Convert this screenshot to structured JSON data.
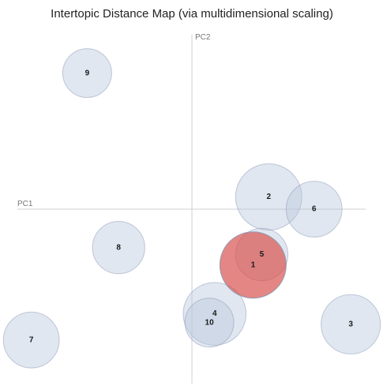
{
  "chart_data": {
    "type": "scatter",
    "title": "Intertopic Distance Map (via multidimensional scaling)",
    "xlabel": "PC1",
    "ylabel": "PC2",
    "xlim": [
      -1,
      1
    ],
    "ylim": [
      -1,
      1
    ],
    "grid": false,
    "selected_topic": "1",
    "colors": {
      "default_fill": "#b8c6dc",
      "default_stroke": "#8a98b5",
      "selected_fill": "#d9534f",
      "selected_stroke": "#5a2020"
    },
    "topics": [
      {
        "id": "9",
        "x": -0.6,
        "y": 0.78,
        "size": 0.14
      },
      {
        "id": "2",
        "x": 0.44,
        "y": 0.07,
        "size": 0.19
      },
      {
        "id": "6",
        "x": 0.7,
        "y": -0.0,
        "size": 0.16
      },
      {
        "id": "8",
        "x": -0.42,
        "y": -0.22,
        "size": 0.15
      },
      {
        "id": "5",
        "x": 0.4,
        "y": -0.26,
        "size": 0.15
      },
      {
        "id": "4",
        "x": 0.13,
        "y": -0.6,
        "size": 0.18
      },
      {
        "id": "10",
        "x": 0.1,
        "y": -0.65,
        "size": 0.14
      },
      {
        "id": "3",
        "x": 0.91,
        "y": -0.66,
        "size": 0.17
      },
      {
        "id": "7",
        "x": -0.92,
        "y": -0.75,
        "size": 0.16
      },
      {
        "id": "1",
        "x": 0.35,
        "y": -0.32,
        "size": 0.19
      }
    ]
  }
}
